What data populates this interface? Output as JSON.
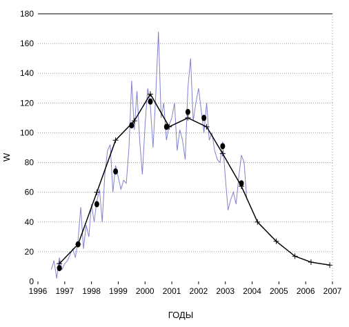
{
  "chart_data": {
    "type": "line",
    "title": "",
    "xlabel": "ГОДЫ",
    "ylabel": "W",
    "xlim": [
      1996,
      2007
    ],
    "ylim": [
      0,
      180
    ],
    "x_ticks": [
      "1996",
      "1997",
      "1998",
      "1999",
      "2000",
      "2001",
      "2002",
      "2003",
      "2004",
      "2005",
      "2006",
      "2007"
    ],
    "y_ticks": [
      "0",
      "20",
      "40",
      "60",
      "80",
      "100",
      "120",
      "140",
      "160",
      "180"
    ],
    "grid": "horizontal-dotted",
    "legend": "none",
    "colors": {
      "monthly": "#8080d0",
      "smoothed": "#000000"
    },
    "series": [
      {
        "kind": "monthly",
        "x": [
          1996.5,
          1996.6,
          1996.7,
          1996.8,
          1996.9,
          1997.0,
          1997.1,
          1997.2,
          1997.3,
          1997.4,
          1997.5,
          1997.6,
          1997.7,
          1997.8,
          1997.9,
          1998.0,
          1998.1,
          1998.2,
          1998.3,
          1998.4,
          1998.5,
          1998.6,
          1998.7,
          1998.8,
          1998.9,
          1999.0,
          1999.1,
          1999.2,
          1999.3,
          1999.4,
          1999.5,
          1999.6,
          1999.7,
          1999.8,
          1999.9,
          2000.0,
          2000.1,
          2000.2,
          2000.3,
          2000.4,
          2000.5,
          2000.6,
          2000.7,
          2000.8,
          2000.9,
          2001.0,
          2001.1,
          2001.2,
          2001.3,
          2001.4,
          2001.5,
          2001.6,
          2001.7,
          2001.8,
          2001.9,
          2002.0,
          2002.1,
          2002.2,
          2002.3,
          2002.4,
          2002.5,
          2002.6,
          2002.7,
          2002.8,
          2002.9,
          2003.0,
          2003.1,
          2003.2,
          2003.3,
          2003.4,
          2003.5,
          2003.6,
          2003.7,
          2003.8
        ],
        "y": [
          8,
          14,
          2,
          16,
          8,
          12,
          14,
          18,
          22,
          16,
          28,
          50,
          22,
          38,
          30,
          52,
          40,
          54,
          62,
          40,
          72,
          88,
          92,
          60,
          78,
          70,
          62,
          68,
          66,
          90,
          135,
          102,
          128,
          95,
          72,
          105,
          130,
          118,
          90,
          125,
          168,
          110,
          120,
          95,
          105,
          110,
          120,
          88,
          102,
          95,
          82,
          130,
          150,
          108,
          120,
          130,
          115,
          100,
          120,
          95,
          100,
          88,
          82,
          80,
          94,
          70,
          48,
          55,
          60,
          52,
          70,
          85,
          80,
          55
        ]
      },
      {
        "kind": "smoothed",
        "x": [
          1996.8,
          1997.5,
          1998.2,
          1998.9,
          1999.6,
          2000.2,
          2000.9,
          2001.6,
          2002.3,
          2002.9,
          2003.6,
          2004.2,
          2004.9,
          2005.6,
          2006.2,
          2006.9
        ],
        "y": [
          12,
          25,
          60,
          95,
          108,
          126,
          104,
          110,
          104,
          86,
          64,
          40,
          27,
          17,
          13,
          11
        ]
      },
      {
        "kind": "observed",
        "x": [
          1996.8,
          1997.5,
          1998.2,
          1998.9,
          1999.5,
          2000.2,
          2000.8,
          2001.6,
          2002.2,
          2002.9,
          2003.6
        ],
        "y": [
          9,
          25,
          52,
          74,
          105,
          121,
          104,
          114,
          110,
          91,
          66
        ]
      }
    ]
  }
}
